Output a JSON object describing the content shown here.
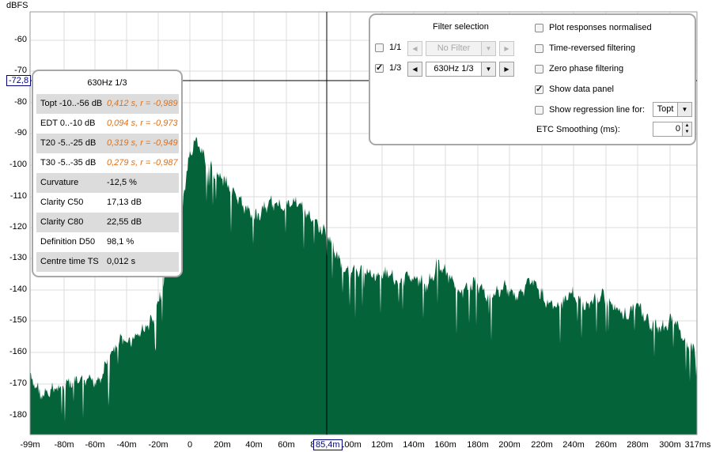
{
  "axes": {
    "y_unit": "dBFS",
    "y_ticks": [
      "-60",
      "-70",
      "-80",
      "-90",
      "-100",
      "-110",
      "-120",
      "-130",
      "-140",
      "-150",
      "-160",
      "-170",
      "-180"
    ],
    "x_ticks": [
      "-99m",
      "-80m",
      "-60m",
      "-40m",
      "-20m",
      "0",
      "20m",
      "40m",
      "60m",
      "80m",
      "100m",
      "120m",
      "140m",
      "160m",
      "180m",
      "200m",
      "220m",
      "240m",
      "260m",
      "280m",
      "300m",
      "317ms"
    ]
  },
  "cursor": {
    "y_readout": "-72,8",
    "x_readout": "85,4m"
  },
  "data_panel": {
    "title": "630Hz 1/3",
    "rows": [
      {
        "label": "Topt -10..-56 dB",
        "value": "0,412 s, r = -0,989",
        "highlight": true
      },
      {
        "label": "EDT  0..-10 dB",
        "value": "0,094 s, r = -0,973",
        "highlight": true
      },
      {
        "label": "T20 -5..-25 dB",
        "value": "0,319 s, r = -0,949",
        "highlight": true
      },
      {
        "label": "T30 -5..-35 dB",
        "value": "0,279 s, r = -0,987",
        "highlight": true
      },
      {
        "label": "Curvature",
        "value": "-12,5 %",
        "highlight": false
      },
      {
        "label": "Clarity C50",
        "value": "17,13 dB",
        "highlight": false
      },
      {
        "label": "Clarity C80",
        "value": "22,55 dB",
        "highlight": false
      },
      {
        "label": "Definition D50",
        "value": "98,1 %",
        "highlight": false
      },
      {
        "label": "Centre time TS",
        "value": "0,012 s",
        "highlight": false
      }
    ]
  },
  "filter_panel": {
    "heading": "Filter selection",
    "octave": {
      "label": "1/1",
      "checked": false,
      "value": "No Filter"
    },
    "third": {
      "label": "1/3",
      "checked": true,
      "value": "630Hz 1/3"
    },
    "options": [
      {
        "label": "Plot responses normalised",
        "checked": false
      },
      {
        "label": "Time-reversed filtering",
        "checked": false
      },
      {
        "label": "Zero phase filtering",
        "checked": false
      },
      {
        "label": "Show data panel",
        "checked": true
      },
      {
        "label": "Show regression line for:",
        "checked": false
      }
    ],
    "regression_select": "Topt",
    "etc_smoothing_label": "ETC Smoothing (ms):",
    "etc_smoothing_value": "0"
  },
  "colors": {
    "fill": "#05633a",
    "fill_light": "#b9d3c4",
    "grid": "#dcdcdc",
    "orange": "#e0701a",
    "marker": "#000080"
  }
}
